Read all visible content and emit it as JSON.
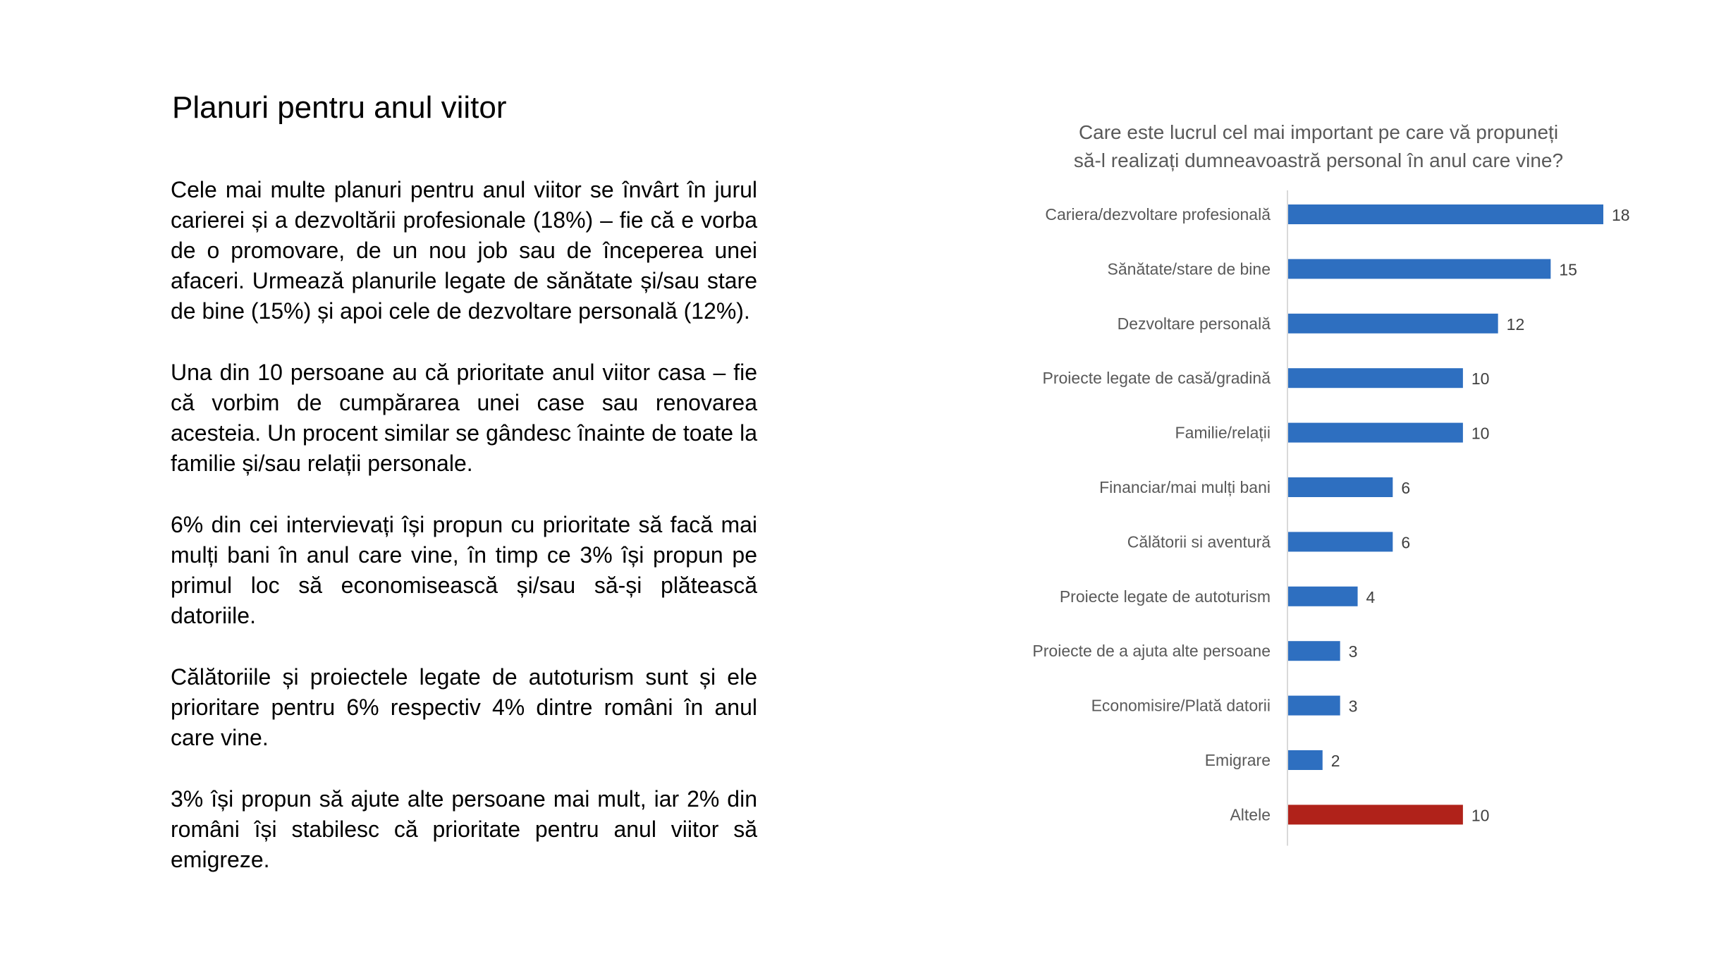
{
  "slide": {
    "title": "Planuri pentru anul viitor",
    "paragraphs": [
      "Cele mai multe planuri pentru anul viitor se învârt în jurul carierei și a dezvoltării profesionale (18%)  – fie că e vorba de o promovare, de un nou job sau de începerea unei afaceri. Urmează planurile legate de sănătate și/sau stare de bine (15%) și apoi cele de dezvoltare personală (12%).",
      "Una din 10 persoane au că prioritate anul viitor casa – fie că vorbim de cumpărarea unei case sau renovarea acesteia. Un procent similar se gândesc înainte de toate la familie și/sau relații personale.",
      "6% din cei intervievați își propun cu prioritate să facă mai mulți bani în anul care vine, în timp ce 3% își propun pe primul loc să economisească și/sau să-și plătească datoriile.",
      "Călătoriile și proiectele legate de autoturism sunt și ele prioritare pentru 6% respectiv 4% dintre români în anul care vine.",
      "3% își propun să ajute alte persoane mai mult, iar 2% din români își stabilesc că prioritate pentru anul viitor să emigreze."
    ]
  },
  "chart_data": {
    "type": "bar",
    "orientation": "horizontal",
    "title_lines": [
      "Care este lucrul cel mai important pe care vă propuneți",
      "să-l realizați dumneavoastră personal în anul care vine?"
    ],
    "categories": [
      "Cariera/dezvoltare profesională",
      "Sănătate/stare de bine",
      "Dezvoltare personală",
      "Proiecte legate de casă/gradină",
      "Familie/relații",
      "Financiar/mai mulți bani",
      "Călătorii si aventură",
      "Proiecte legate de autoturism",
      "Proiecte de a ajuta alte persoane",
      "Economisire/Plată datorii",
      "Emigrare",
      "Altele"
    ],
    "values": [
      18,
      15,
      12,
      10,
      10,
      6,
      6,
      4,
      3,
      3,
      2,
      10
    ],
    "data_labels": [
      "18",
      "15",
      "12",
      "10",
      "10",
      "6",
      "6",
      "4",
      "3",
      "3",
      "2",
      "10"
    ],
    "bar_colors": [
      "#2e6fc0",
      "#2e6fc0",
      "#2e6fc0",
      "#2e6fc0",
      "#2e6fc0",
      "#2e6fc0",
      "#2e6fc0",
      "#2e6fc0",
      "#2e6fc0",
      "#2e6fc0",
      "#2e6fc0",
      "#b0221a"
    ],
    "xlim": [
      0,
      18
    ],
    "grid": false,
    "legend": "none"
  }
}
